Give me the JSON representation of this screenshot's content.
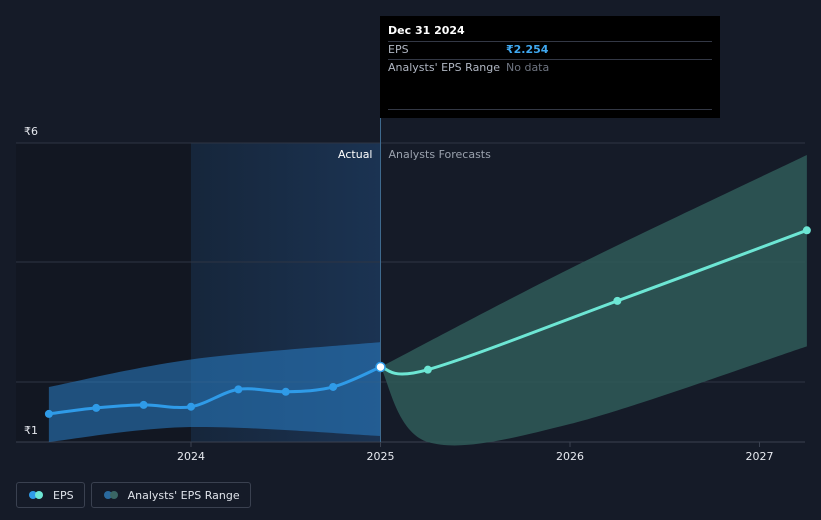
{
  "chart_data": {
    "type": "line",
    "title": "",
    "xlabel": "",
    "ylabel": "",
    "y_ticks": [
      "₹6",
      "₹1"
    ],
    "y_tick_values": [
      6,
      1
    ],
    "ylim": [
      1,
      6
    ],
    "x_ticks": [
      "2024",
      "2025",
      "2026",
      "2027"
    ],
    "x_tick_values": [
      2024,
      2025,
      2026,
      2027
    ],
    "xlim": [
      2023.15,
      2027.25
    ],
    "actual_label": "Actual",
    "forecast_label": "Analysts Forecasts",
    "divider_x": 2025.0,
    "series": [
      {
        "name": "EPS",
        "points": [
          [
            2023.25,
            1.47
          ],
          [
            2023.5,
            1.57
          ],
          [
            2023.75,
            1.62
          ],
          [
            2024.0,
            1.59
          ],
          [
            2024.25,
            1.88
          ],
          [
            2024.5,
            1.84
          ],
          [
            2024.75,
            1.92
          ],
          [
            2025.0,
            2.254
          ],
          [
            2025.25,
            2.21
          ],
          [
            2026.25,
            3.36
          ],
          [
            2027.25,
            4.54
          ]
        ]
      }
    ],
    "range_band_actual": {
      "upper": [
        [
          2023.25,
          1.92
        ],
        [
          2024.0,
          2.38
        ],
        [
          2025.0,
          2.67
        ]
      ],
      "lower": [
        [
          2023.25,
          1.0
        ],
        [
          2024.0,
          1.25
        ],
        [
          2025.0,
          1.1
        ]
      ]
    },
    "range_band_forecast": {
      "upper": [
        [
          2025.0,
          2.254
        ],
        [
          2026.0,
          3.9
        ],
        [
          2027.25,
          5.8
        ]
      ],
      "lower": [
        [
          2025.0,
          2.254
        ],
        [
          2025.25,
          1.0
        ],
        [
          2026.0,
          1.3
        ],
        [
          2027.25,
          2.6
        ]
      ]
    },
    "legend_placement": "bottom-left",
    "grid": true
  },
  "tooltip": {
    "date": "Dec 31 2024",
    "eps_label": "EPS",
    "eps_value": "₹2.254",
    "range_label": "Analysts' EPS Range",
    "range_value": "No data"
  },
  "legend": {
    "eps_label": "EPS",
    "range_label": "Analysts' EPS Range"
  },
  "colors": {
    "eps_actual": "#2f9be8",
    "eps_forecast": "#6de6d4",
    "band_actual": "#2a7fc9",
    "band_forecast": "#2f5a58"
  }
}
